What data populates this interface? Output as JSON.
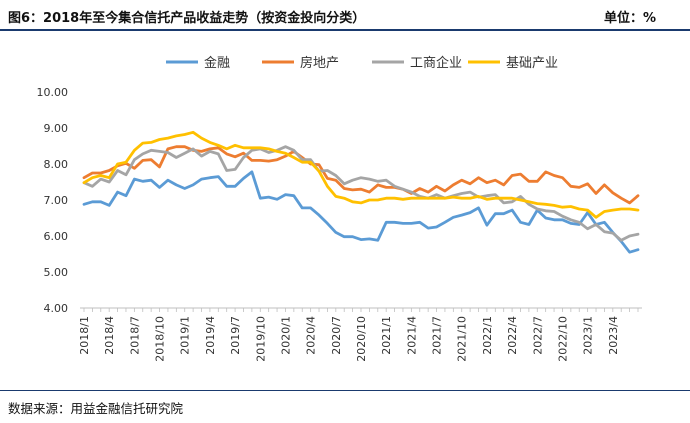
{
  "header": {
    "title": "图6：2018年至今集合信托产品收益走势（按资金投向分类）",
    "unit": "单位：%"
  },
  "footer": {
    "source": "数据来源：用益金融信托研究院"
  },
  "colors": {
    "finance": "#5b9bd5",
    "real_estate": "#ed7d31",
    "industrial_commercial": "#a5a5a5",
    "infrastructure": "#ffc000",
    "rule": "#1a3a6e"
  },
  "chart_data": {
    "type": "line",
    "title": "",
    "xlabel": "",
    "ylabel": "",
    "ylim": [
      4.0,
      10.0
    ],
    "yticks": [
      "4.00",
      "5.00",
      "6.00",
      "7.00",
      "8.00",
      "9.00",
      "10.00"
    ],
    "grid": false,
    "legend_position": "top",
    "x_tick_labels": [
      "2018/1",
      "2018/4",
      "2018/7",
      "2018/10",
      "2019/1",
      "2019/4",
      "2019/7",
      "2019/10",
      "2020/1",
      "2020/4",
      "2020/7",
      "2020/10",
      "2021/1",
      "2021/4",
      "2021/7",
      "2021/10",
      "2022/1",
      "2022/4",
      "2022/7",
      "2022/10",
      "2023/1",
      "2023/4"
    ],
    "x_start": "2018-01",
    "x_step_months": 1,
    "series": [
      {
        "name": "金融",
        "color": "#5b9bd5",
        "values": [
          6.88,
          6.95,
          6.95,
          6.85,
          7.22,
          7.12,
          7.58,
          7.52,
          7.55,
          7.35,
          7.55,
          7.42,
          7.32,
          7.42,
          7.58,
          7.62,
          7.65,
          7.38,
          7.38,
          7.6,
          7.78,
          7.05,
          7.08,
          7.02,
          7.15,
          7.12,
          6.78,
          6.78,
          6.58,
          6.35,
          6.1,
          5.98,
          5.98,
          5.9,
          5.92,
          5.88,
          6.38,
          6.38,
          6.35,
          6.35,
          6.38,
          6.22,
          6.25,
          6.38,
          6.52,
          6.58,
          6.65,
          6.78,
          6.3,
          6.62,
          6.62,
          6.72,
          6.38,
          6.32,
          6.72,
          6.5,
          6.45,
          6.45,
          6.35,
          6.32,
          6.65,
          6.32,
          6.38,
          6.1,
          5.85,
          5.55,
          5.62
        ]
      },
      {
        "name": "房地产",
        "color": "#ed7d31",
        "values": [
          7.62,
          7.75,
          7.75,
          7.82,
          7.95,
          8.02,
          7.88,
          8.1,
          8.12,
          7.92,
          8.42,
          8.48,
          8.48,
          8.38,
          8.35,
          8.42,
          8.45,
          8.28,
          8.2,
          8.3,
          8.1,
          8.1,
          8.08,
          8.12,
          8.22,
          8.35,
          8.18,
          8.0,
          7.98,
          7.6,
          7.55,
          7.32,
          7.28,
          7.3,
          7.22,
          7.42,
          7.35,
          7.35,
          7.3,
          7.18,
          7.32,
          7.22,
          7.38,
          7.25,
          7.42,
          7.55,
          7.45,
          7.62,
          7.48,
          7.55,
          7.42,
          7.68,
          7.72,
          7.52,
          7.52,
          7.78,
          7.68,
          7.62,
          7.38,
          7.35,
          7.45,
          7.18,
          7.42,
          7.2,
          7.05,
          6.92,
          7.12
        ]
      },
      {
        "name": "工商企业",
        "color": "#a5a5a5",
        "values": [
          7.48,
          7.38,
          7.58,
          7.5,
          7.82,
          7.7,
          8.12,
          8.28,
          8.38,
          8.35,
          8.32,
          8.18,
          8.3,
          8.42,
          8.22,
          8.35,
          8.28,
          7.82,
          7.85,
          8.18,
          8.38,
          8.42,
          8.32,
          8.38,
          8.48,
          8.38,
          8.12,
          8.12,
          7.8,
          7.82,
          7.68,
          7.45,
          7.55,
          7.62,
          7.58,
          7.52,
          7.55,
          7.38,
          7.3,
          7.22,
          7.1,
          7.05,
          7.15,
          7.05,
          7.12,
          7.18,
          7.22,
          7.08,
          7.12,
          7.15,
          6.92,
          6.95,
          7.1,
          6.88,
          6.75,
          6.7,
          6.68,
          6.55,
          6.45,
          6.38,
          6.2,
          6.32,
          6.12,
          6.08,
          5.88,
          6.0,
          6.05
        ]
      },
      {
        "name": "基础产业",
        "color": "#ffc000",
        "values": [
          7.48,
          7.62,
          7.68,
          7.62,
          8.0,
          8.05,
          8.38,
          8.58,
          8.6,
          8.68,
          8.72,
          8.78,
          8.82,
          8.88,
          8.72,
          8.6,
          8.52,
          8.42,
          8.52,
          8.45,
          8.45,
          8.45,
          8.42,
          8.35,
          8.3,
          8.18,
          8.05,
          8.05,
          7.8,
          7.38,
          7.1,
          7.05,
          6.95,
          6.92,
          7.0,
          7.0,
          7.05,
          7.05,
          7.02,
          7.05,
          7.05,
          7.05,
          7.05,
          7.05,
          7.08,
          7.05,
          7.05,
          7.1,
          7.02,
          7.05,
          7.05,
          7.05,
          7.0,
          6.95,
          6.9,
          6.88,
          6.85,
          6.8,
          6.82,
          6.75,
          6.72,
          6.52,
          6.68,
          6.72,
          6.75,
          6.75,
          6.72
        ]
      }
    ]
  }
}
